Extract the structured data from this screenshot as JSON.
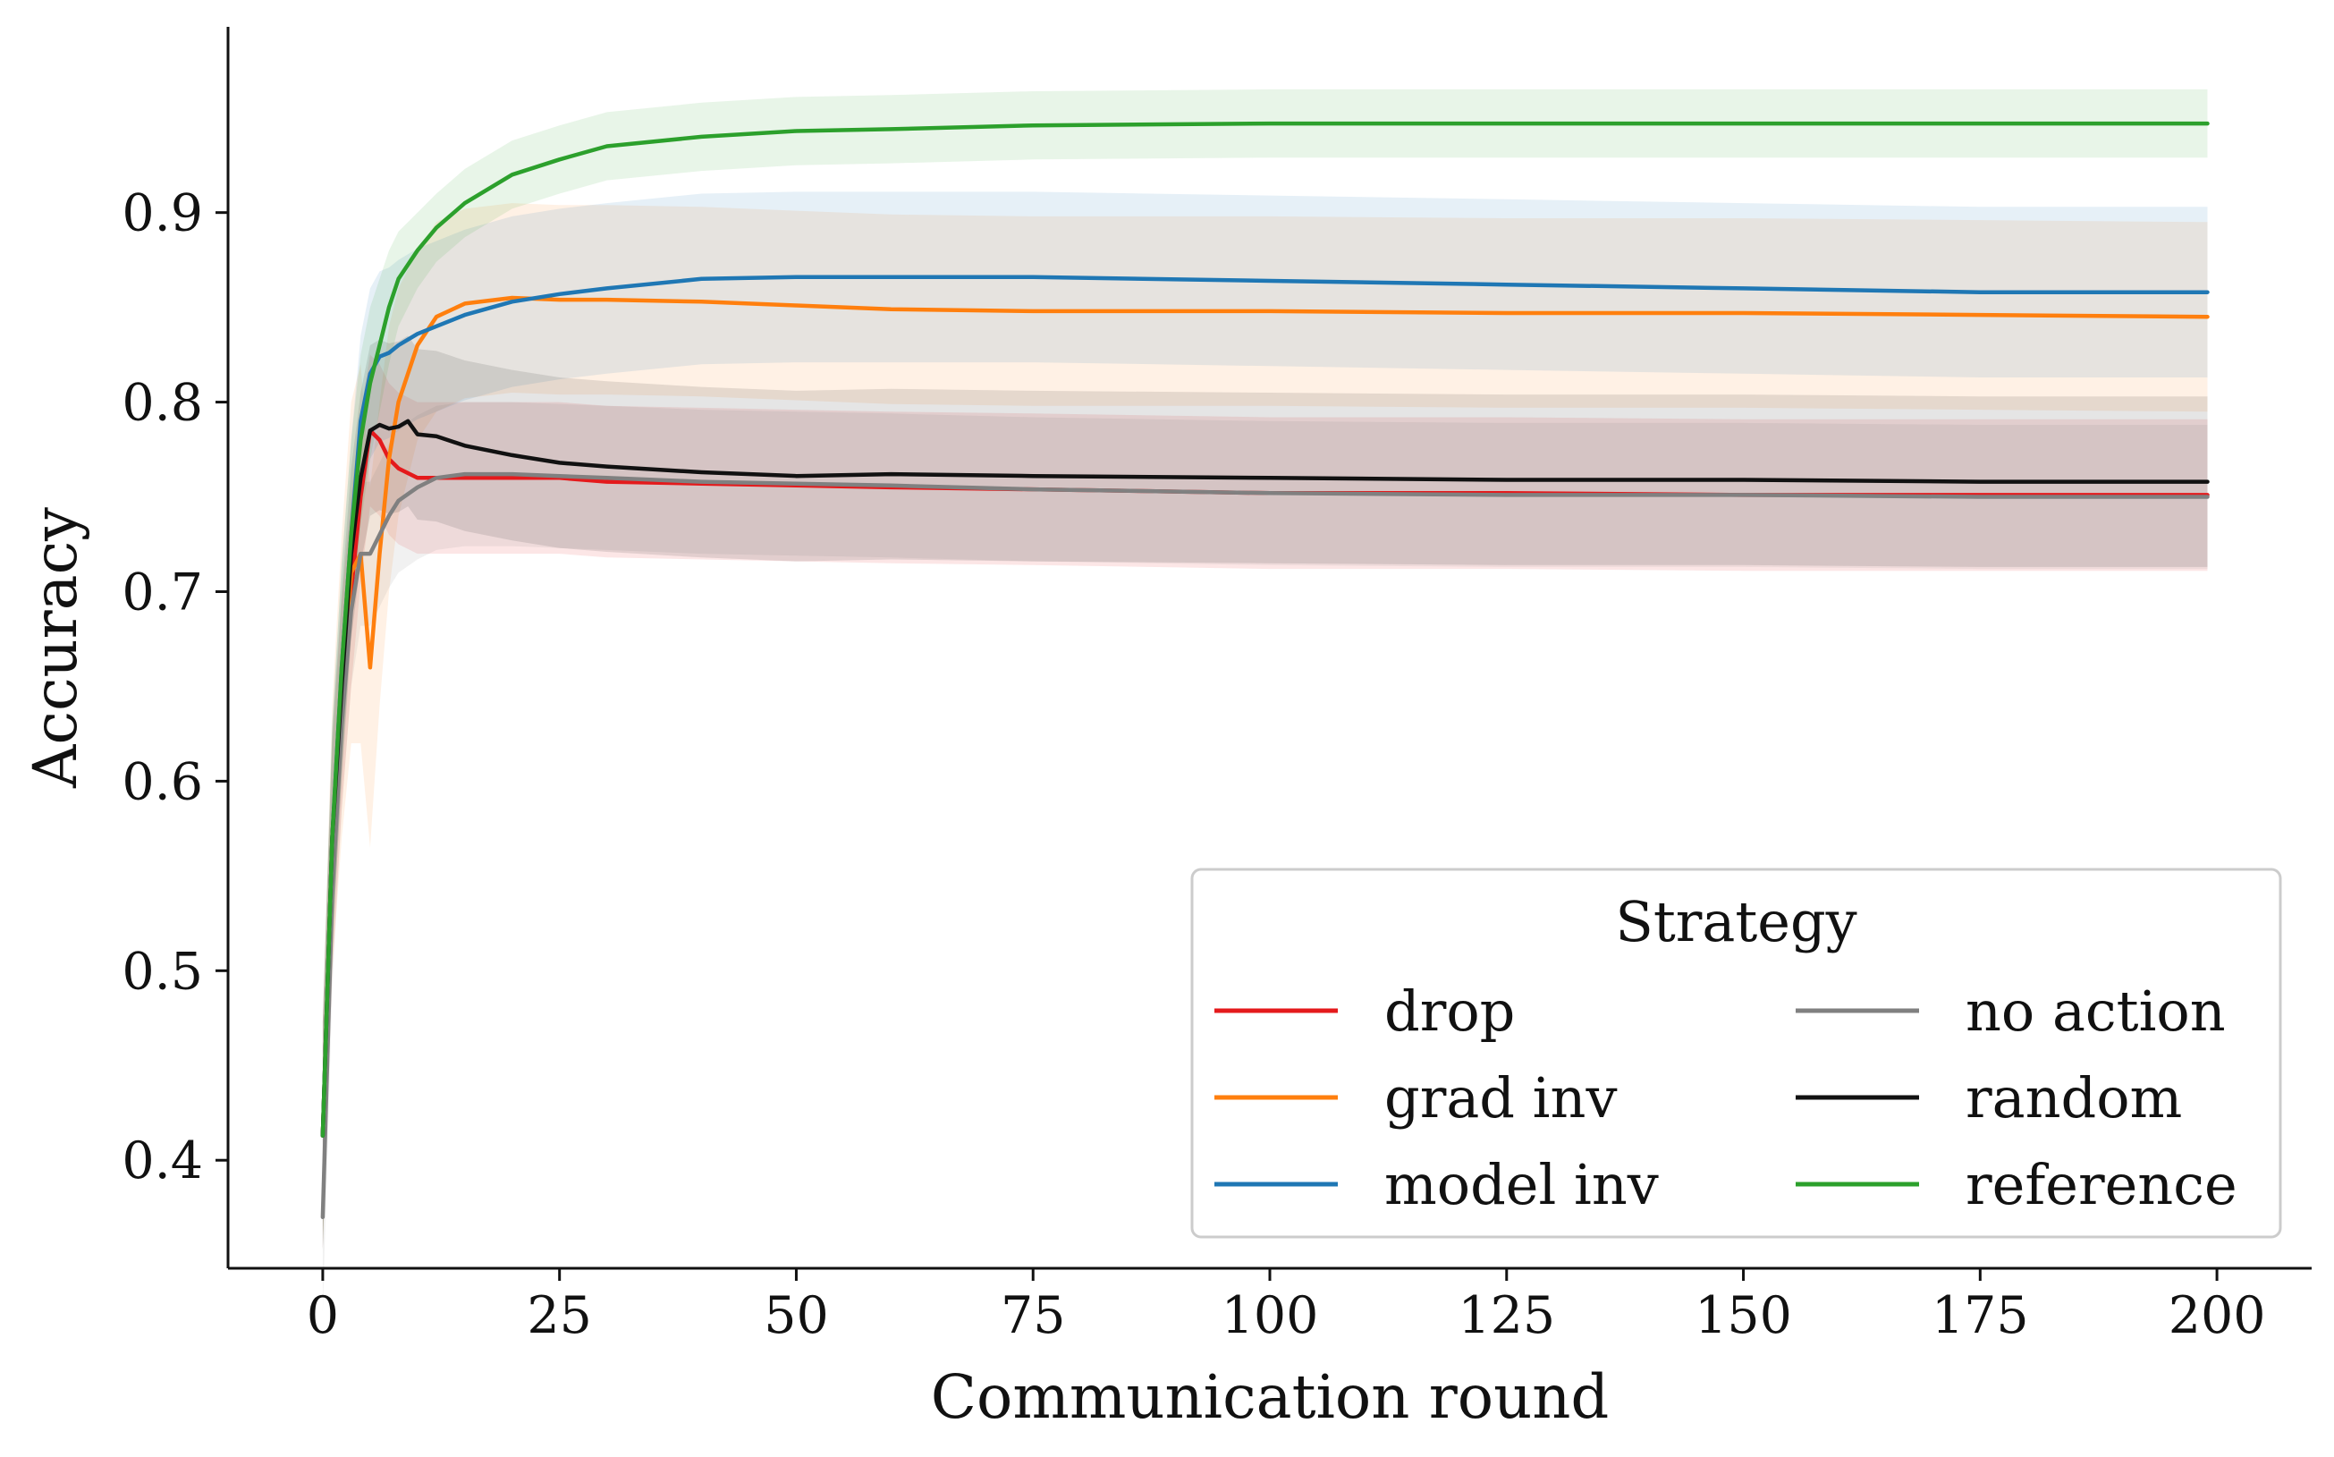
{
  "chart_data": {
    "type": "line",
    "title": "",
    "xlabel": "Communication round",
    "ylabel": "Accuracy",
    "xlim": [
      -10,
      210
    ],
    "ylim": [
      0.343,
      0.998
    ],
    "xticks": [
      0,
      25,
      50,
      75,
      100,
      125,
      150,
      175,
      200
    ],
    "xtick_labels": [
      "0",
      "25",
      "50",
      "75",
      "100",
      "125",
      "150",
      "175",
      "200"
    ],
    "yticks": [
      0.4,
      0.5,
      0.6,
      0.7,
      0.8,
      0.9
    ],
    "ytick_labels": [
      "0.4",
      "0.5",
      "0.6",
      "0.7",
      "0.8",
      "0.9"
    ],
    "grid": false,
    "legend": {
      "title": "Strategy",
      "placement": "lower right",
      "columns": 2
    },
    "series": [
      {
        "name": "drop",
        "color": "#e41a1c",
        "x": [
          0,
          1,
          2,
          3,
          4,
          5,
          6,
          7,
          8,
          10,
          12,
          15,
          20,
          25,
          30,
          40,
          50,
          60,
          75,
          100,
          125,
          150,
          175,
          199
        ],
        "y": [
          0.413,
          0.56,
          0.64,
          0.7,
          0.75,
          0.785,
          0.78,
          0.77,
          0.765,
          0.76,
          0.76,
          0.76,
          0.76,
          0.76,
          0.758,
          0.757,
          0.756,
          0.755,
          0.754,
          0.752,
          0.752,
          0.751,
          0.751,
          0.751
        ],
        "band": [
          0.06,
          0.06,
          0.055,
          0.05,
          0.045,
          0.04,
          0.04,
          0.04,
          0.04,
          0.04,
          0.04,
          0.04,
          0.04,
          0.04,
          0.04,
          0.04,
          0.04,
          0.04,
          0.04,
          0.04,
          0.04,
          0.04,
          0.04,
          0.04
        ]
      },
      {
        "name": "grad inv",
        "color": "#ff7f0e",
        "x": [
          0,
          1,
          2,
          3,
          4,
          5,
          6,
          7,
          8,
          10,
          12,
          15,
          20,
          25,
          30,
          40,
          50,
          60,
          75,
          100,
          125,
          150,
          175,
          199
        ],
        "y": [
          0.413,
          0.57,
          0.65,
          0.71,
          0.72,
          0.66,
          0.72,
          0.77,
          0.8,
          0.83,
          0.845,
          0.852,
          0.855,
          0.854,
          0.854,
          0.853,
          0.851,
          0.849,
          0.848,
          0.848,
          0.847,
          0.847,
          0.846,
          0.845
        ],
        "band": [
          0.06,
          0.07,
          0.08,
          0.09,
          0.1,
          0.095,
          0.08,
          0.07,
          0.06,
          0.05,
          0.05,
          0.05,
          0.05,
          0.05,
          0.05,
          0.05,
          0.05,
          0.05,
          0.05,
          0.05,
          0.05,
          0.05,
          0.05,
          0.05
        ]
      },
      {
        "name": "model inv",
        "color": "#1f77b4",
        "x": [
          0,
          1,
          2,
          3,
          4,
          5,
          6,
          7,
          8,
          10,
          12,
          15,
          20,
          25,
          30,
          40,
          50,
          60,
          75,
          100,
          125,
          150,
          175,
          199
        ],
        "y": [
          0.413,
          0.57,
          0.66,
          0.73,
          0.79,
          0.815,
          0.824,
          0.826,
          0.83,
          0.836,
          0.84,
          0.846,
          0.853,
          0.857,
          0.86,
          0.865,
          0.866,
          0.866,
          0.866,
          0.864,
          0.862,
          0.86,
          0.858,
          0.858
        ],
        "band": [
          0.06,
          0.06,
          0.055,
          0.05,
          0.045,
          0.045,
          0.045,
          0.045,
          0.045,
          0.045,
          0.045,
          0.045,
          0.045,
          0.045,
          0.045,
          0.045,
          0.045,
          0.045,
          0.045,
          0.045,
          0.045,
          0.045,
          0.045,
          0.045
        ]
      },
      {
        "name": "no action",
        "color": "#808080",
        "x": [
          0,
          1,
          2,
          3,
          4,
          5,
          6,
          7,
          8,
          10,
          12,
          15,
          20,
          25,
          30,
          40,
          50,
          60,
          75,
          100,
          125,
          150,
          175,
          199
        ],
        "y": [
          0.37,
          0.54,
          0.63,
          0.69,
          0.72,
          0.72,
          0.73,
          0.74,
          0.748,
          0.755,
          0.76,
          0.762,
          0.762,
          0.761,
          0.76,
          0.758,
          0.757,
          0.756,
          0.754,
          0.752,
          0.751,
          0.751,
          0.75,
          0.75
        ],
        "band": [
          0.05,
          0.05,
          0.045,
          0.04,
          0.038,
          0.038,
          0.038,
          0.038,
          0.038,
          0.038,
          0.038,
          0.038,
          0.038,
          0.038,
          0.038,
          0.038,
          0.038,
          0.038,
          0.038,
          0.038,
          0.038,
          0.038,
          0.038,
          0.038
        ]
      },
      {
        "name": "random",
        "color": "#111111",
        "x": [
          0,
          1,
          2,
          3,
          4,
          5,
          6,
          7,
          8,
          9,
          10,
          12,
          15,
          20,
          25,
          30,
          40,
          50,
          60,
          75,
          100,
          125,
          150,
          175,
          199
        ],
        "y": [
          0.413,
          0.57,
          0.65,
          0.72,
          0.76,
          0.785,
          0.788,
          0.786,
          0.787,
          0.79,
          0.783,
          0.782,
          0.777,
          0.772,
          0.768,
          0.766,
          0.763,
          0.761,
          0.762,
          0.761,
          0.76,
          0.759,
          0.759,
          0.758,
          0.758
        ],
        "band": [
          0.06,
          0.055,
          0.05,
          0.045,
          0.045,
          0.045,
          0.045,
          0.045,
          0.045,
          0.045,
          0.045,
          0.045,
          0.045,
          0.045,
          0.045,
          0.045,
          0.045,
          0.045,
          0.045,
          0.045,
          0.045,
          0.045,
          0.045,
          0.045,
          0.045
        ]
      },
      {
        "name": "reference",
        "color": "#2ca02c",
        "x": [
          0,
          1,
          2,
          3,
          4,
          5,
          6,
          7,
          8,
          10,
          12,
          15,
          20,
          25,
          30,
          40,
          50,
          60,
          75,
          100,
          125,
          150,
          175,
          199
        ],
        "y": [
          0.413,
          0.57,
          0.66,
          0.73,
          0.78,
          0.81,
          0.83,
          0.85,
          0.865,
          0.88,
          0.892,
          0.905,
          0.92,
          0.928,
          0.935,
          0.94,
          0.943,
          0.944,
          0.946,
          0.947,
          0.947,
          0.947,
          0.947,
          0.947
        ],
        "band": [
          0.06,
          0.06,
          0.055,
          0.05,
          0.045,
          0.04,
          0.035,
          0.03,
          0.025,
          0.02,
          0.018,
          0.018,
          0.018,
          0.018,
          0.018,
          0.018,
          0.018,
          0.018,
          0.018,
          0.018,
          0.018,
          0.018,
          0.018,
          0.018
        ]
      }
    ]
  }
}
